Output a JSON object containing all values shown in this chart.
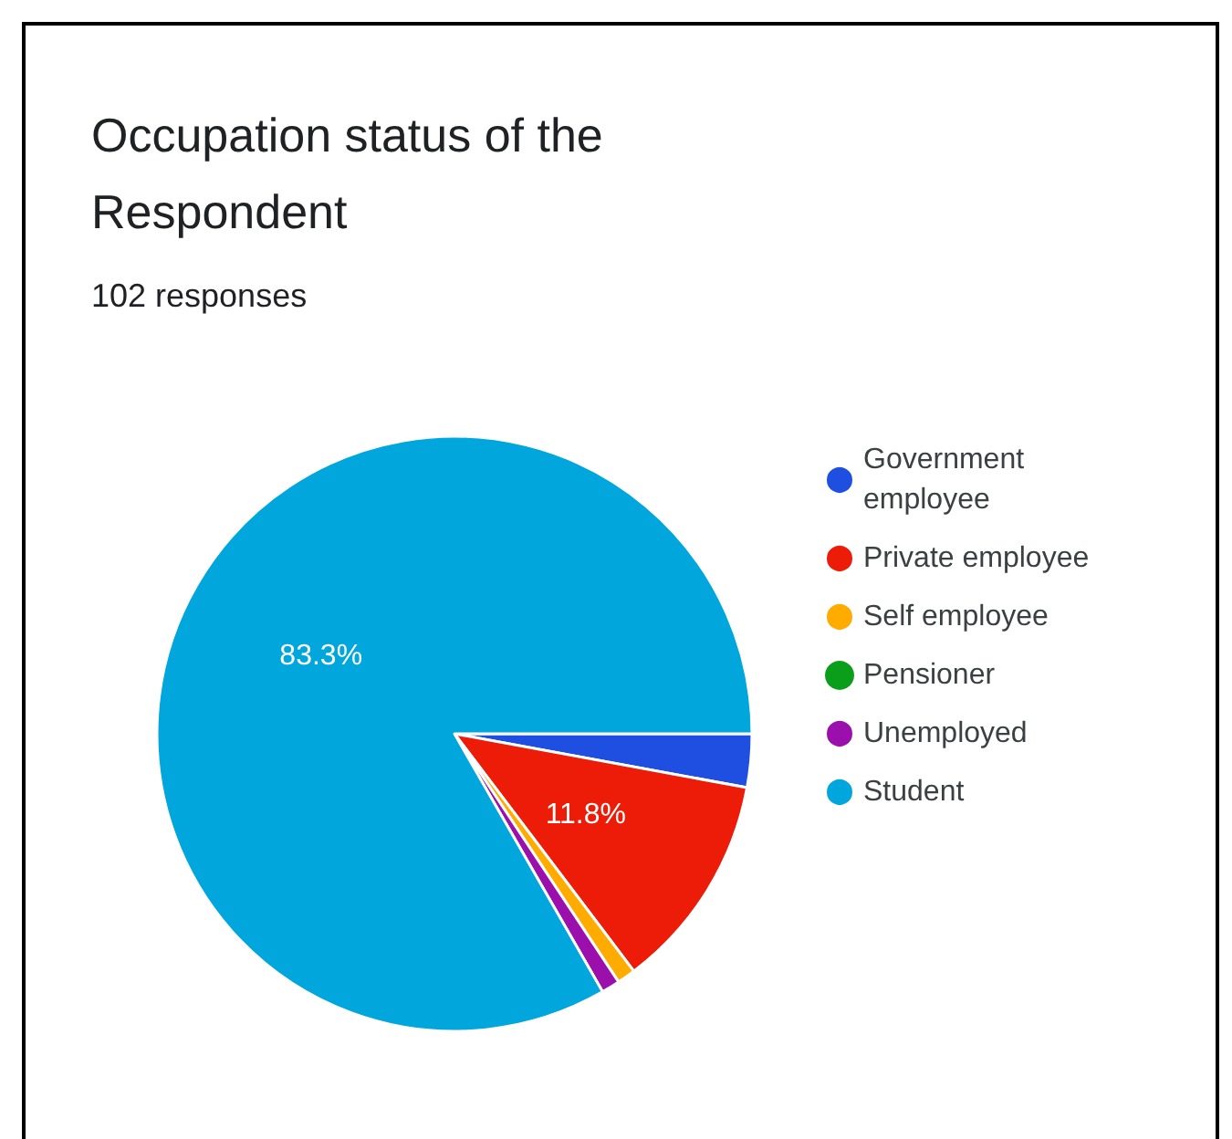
{
  "chart_data": {
    "type": "pie",
    "title": "Occupation status of the Respondent",
    "subtitle": "102 responses",
    "categories": [
      "Government employee",
      "Private employee",
      "Self employee",
      "Pensioner",
      "Unemployed",
      "Student"
    ],
    "values": [
      2.9,
      11.8,
      1.0,
      0,
      1.0,
      83.3
    ],
    "colors": [
      "#1f4fe0",
      "#ec1c08",
      "#ffab00",
      "#0a9e1a",
      "#9b0fad",
      "#00a6dc"
    ],
    "value_labels": [
      null,
      "11.8%",
      null,
      null,
      null,
      "83.3%"
    ],
    "legend": "right"
  }
}
